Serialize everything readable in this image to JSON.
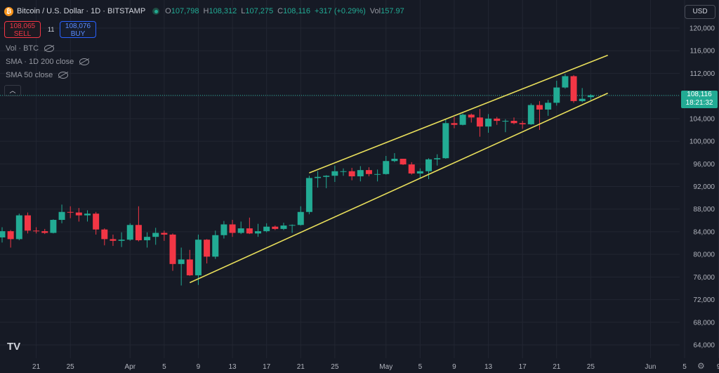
{
  "header": {
    "coin_symbol": "₿",
    "symbol": "Bitcoin / U.S. Dollar · 1D · BITSTAMP",
    "o_label": "O",
    "o": "107,798",
    "h_label": "H",
    "h": "108,312",
    "l_label": "L",
    "l": "107,275",
    "c_label": "C",
    "c": "108,116",
    "change": "+317 (+0.29%)",
    "vol_label": "Vol",
    "vol": "157.97"
  },
  "trade": {
    "sell_price": "108,065",
    "sell_label": "SELL",
    "spread": "11",
    "buy_price": "108,076",
    "buy_label": "BUY"
  },
  "indicators": [
    "Vol · BTC",
    "SMA · 1D 200 close",
    "SMA 50 close"
  ],
  "collapse_icon": "chevron-up-icon",
  "currency": "USD",
  "last_price": {
    "value": "108,116",
    "countdown": "18:21:32"
  },
  "colors": {
    "up": "#22ab94",
    "down": "#f23645",
    "channel": "#e8de5b",
    "background": "#161a25",
    "grid": "#222632"
  },
  "chart_data": {
    "type": "candlestick",
    "y_ticks": [
      "64,000",
      "68,000",
      "72,000",
      "76,000",
      "80,000",
      "84,000",
      "88,000",
      "92,000",
      "96,000",
      "100,000",
      "104,000",
      "108,000",
      "112,000",
      "116,000",
      "120,000"
    ],
    "x_ticks": [
      "21",
      "25",
      "Apr",
      "5",
      "9",
      "13",
      "17",
      "21",
      "25",
      "May",
      "5",
      "9",
      "13",
      "17",
      "21",
      "25",
      "Jun",
      "5",
      "9"
    ],
    "ylim": [
      62000,
      121000
    ],
    "grid": true,
    "start_date": "2025-03-17",
    "candles": [
      {
        "date": "2025-03-17",
        "o": 83000,
        "h": 84800,
        "l": 82100,
        "c": 84100
      },
      {
        "date": "2025-03-18",
        "o": 84100,
        "h": 84300,
        "l": 81200,
        "c": 82700
      },
      {
        "date": "2025-03-19",
        "o": 82700,
        "h": 87200,
        "l": 82500,
        "c": 86900
      },
      {
        "date": "2025-03-20",
        "o": 86900,
        "h": 87400,
        "l": 83700,
        "c": 84200
      },
      {
        "date": "2025-03-21",
        "o": 84200,
        "h": 84800,
        "l": 83700,
        "c": 84100
      },
      {
        "date": "2025-03-22",
        "o": 84100,
        "h": 84500,
        "l": 83600,
        "c": 83800
      },
      {
        "date": "2025-03-23",
        "o": 83800,
        "h": 86200,
        "l": 83700,
        "c": 86100
      },
      {
        "date": "2025-03-24",
        "o": 86100,
        "h": 88800,
        "l": 85500,
        "c": 87500
      },
      {
        "date": "2025-03-25",
        "o": 87500,
        "h": 88500,
        "l": 86400,
        "c": 87400
      },
      {
        "date": "2025-03-26",
        "o": 87400,
        "h": 88200,
        "l": 85800,
        "c": 86900
      },
      {
        "date": "2025-03-27",
        "o": 86900,
        "h": 87800,
        "l": 85800,
        "c": 87200
      },
      {
        "date": "2025-03-28",
        "o": 87200,
        "h": 87500,
        "l": 83500,
        "c": 84400
      },
      {
        "date": "2025-03-29",
        "o": 84400,
        "h": 84600,
        "l": 81600,
        "c": 82700
      },
      {
        "date": "2025-03-30",
        "o": 82700,
        "h": 83500,
        "l": 81500,
        "c": 82400
      },
      {
        "date": "2025-03-31",
        "o": 82400,
        "h": 83900,
        "l": 81300,
        "c": 82600
      },
      {
        "date": "2025-04-01",
        "o": 82600,
        "h": 85500,
        "l": 82400,
        "c": 85200
      },
      {
        "date": "2025-04-02",
        "o": 85200,
        "h": 88500,
        "l": 82300,
        "c": 82500
      },
      {
        "date": "2025-04-03",
        "o": 82500,
        "h": 83900,
        "l": 81200,
        "c": 83100
      },
      {
        "date": "2025-04-04",
        "o": 83100,
        "h": 84700,
        "l": 81700,
        "c": 83800
      },
      {
        "date": "2025-04-05",
        "o": 83800,
        "h": 84200,
        "l": 82400,
        "c": 83500
      },
      {
        "date": "2025-04-06",
        "o": 83500,
        "h": 83700,
        "l": 77100,
        "c": 78300
      },
      {
        "date": "2025-04-07",
        "o": 78300,
        "h": 81200,
        "l": 74500,
        "c": 79100
      },
      {
        "date": "2025-04-08",
        "o": 79100,
        "h": 80800,
        "l": 76200,
        "c": 76300
      },
      {
        "date": "2025-04-09",
        "o": 76300,
        "h": 83500,
        "l": 74600,
        "c": 82600
      },
      {
        "date": "2025-04-10",
        "o": 82600,
        "h": 82700,
        "l": 78400,
        "c": 79600
      },
      {
        "date": "2025-04-11",
        "o": 79600,
        "h": 84200,
        "l": 79200,
        "c": 83400
      },
      {
        "date": "2025-04-12",
        "o": 83400,
        "h": 85900,
        "l": 82800,
        "c": 85300
      },
      {
        "date": "2025-04-13",
        "o": 85300,
        "h": 86100,
        "l": 83100,
        "c": 83800
      },
      {
        "date": "2025-04-14",
        "o": 83800,
        "h": 85800,
        "l": 83600,
        "c": 84600
      },
      {
        "date": "2025-04-15",
        "o": 84600,
        "h": 86500,
        "l": 83600,
        "c": 83700
      },
      {
        "date": "2025-04-16",
        "o": 83700,
        "h": 85400,
        "l": 83100,
        "c": 84100
      },
      {
        "date": "2025-04-17",
        "o": 84100,
        "h": 85500,
        "l": 83900,
        "c": 84900
      },
      {
        "date": "2025-04-18",
        "o": 84900,
        "h": 85100,
        "l": 84300,
        "c": 84500
      },
      {
        "date": "2025-04-19",
        "o": 84500,
        "h": 85600,
        "l": 84300,
        "c": 85100
      },
      {
        "date": "2025-04-20",
        "o": 85100,
        "h": 85300,
        "l": 83800,
        "c": 85200
      },
      {
        "date": "2025-04-21",
        "o": 85200,
        "h": 88500,
        "l": 85100,
        "c": 87500
      },
      {
        "date": "2025-04-22",
        "o": 87500,
        "h": 93900,
        "l": 87100,
        "c": 93500
      },
      {
        "date": "2025-04-23",
        "o": 93500,
        "h": 94700,
        "l": 91800,
        "c": 93700
      },
      {
        "date": "2025-04-24",
        "o": 93700,
        "h": 94000,
        "l": 91700,
        "c": 93900
      },
      {
        "date": "2025-04-25",
        "o": 93900,
        "h": 95700,
        "l": 92800,
        "c": 94700
      },
      {
        "date": "2025-04-26",
        "o": 94700,
        "h": 95200,
        "l": 93900,
        "c": 94700
      },
      {
        "date": "2025-04-27",
        "o": 94700,
        "h": 95300,
        "l": 93100,
        "c": 93800
      },
      {
        "date": "2025-04-28",
        "o": 93800,
        "h": 95600,
        "l": 92900,
        "c": 94900
      },
      {
        "date": "2025-04-29",
        "o": 94900,
        "h": 95400,
        "l": 93800,
        "c": 94200
      },
      {
        "date": "2025-04-30",
        "o": 94200,
        "h": 95000,
        "l": 92900,
        "c": 94200
      },
      {
        "date": "2025-05-01",
        "o": 94200,
        "h": 97400,
        "l": 94100,
        "c": 96500
      },
      {
        "date": "2025-05-02",
        "o": 96500,
        "h": 97900,
        "l": 96300,
        "c": 96900
      },
      {
        "date": "2025-05-03",
        "o": 96900,
        "h": 96900,
        "l": 95800,
        "c": 95900
      },
      {
        "date": "2025-05-04",
        "o": 95900,
        "h": 96300,
        "l": 94100,
        "c": 94300
      },
      {
        "date": "2025-05-05",
        "o": 94300,
        "h": 95200,
        "l": 93500,
        "c": 94700
      },
      {
        "date": "2025-05-06",
        "o": 94700,
        "h": 97000,
        "l": 93300,
        "c": 96800
      },
      {
        "date": "2025-05-07",
        "o": 96800,
        "h": 97700,
        "l": 95700,
        "c": 97000
      },
      {
        "date": "2025-05-08",
        "o": 97000,
        "h": 103900,
        "l": 96900,
        "c": 103200
      },
      {
        "date": "2025-05-09",
        "o": 103200,
        "h": 104300,
        "l": 102300,
        "c": 102900
      },
      {
        "date": "2025-05-10",
        "o": 102900,
        "h": 104900,
        "l": 102800,
        "c": 104700
      },
      {
        "date": "2025-05-11",
        "o": 104700,
        "h": 104900,
        "l": 103300,
        "c": 104200
      },
      {
        "date": "2025-05-12",
        "o": 104200,
        "h": 105700,
        "l": 100800,
        "c": 102600
      },
      {
        "date": "2025-05-13",
        "o": 102600,
        "h": 104800,
        "l": 101500,
        "c": 104000
      },
      {
        "date": "2025-05-14",
        "o": 104000,
        "h": 104300,
        "l": 102900,
        "c": 103600
      },
      {
        "date": "2025-05-15",
        "o": 103600,
        "h": 103900,
        "l": 101600,
        "c": 103600
      },
      {
        "date": "2025-05-16",
        "o": 103600,
        "h": 104200,
        "l": 103000,
        "c": 103200
      },
      {
        "date": "2025-05-17",
        "o": 103200,
        "h": 103600,
        "l": 102200,
        "c": 103000
      },
      {
        "date": "2025-05-18",
        "o": 103000,
        "h": 106700,
        "l": 102900,
        "c": 106400
      },
      {
        "date": "2025-05-19",
        "o": 106400,
        "h": 107100,
        "l": 102000,
        "c": 105600
      },
      {
        "date": "2025-05-20",
        "o": 105600,
        "h": 107300,
        "l": 104500,
        "c": 106800
      },
      {
        "date": "2025-05-21",
        "o": 106800,
        "h": 110700,
        "l": 106300,
        "c": 109500
      },
      {
        "date": "2025-05-22",
        "o": 109500,
        "h": 111900,
        "l": 109300,
        "c": 111500
      },
      {
        "date": "2025-05-23",
        "o": 111500,
        "h": 111700,
        "l": 106800,
        "c": 107100
      },
      {
        "date": "2025-05-24",
        "o": 107100,
        "h": 109400,
        "l": 106900,
        "c": 107500
      },
      {
        "date": "2025-05-25",
        "o": 107798,
        "h": 108312,
        "l": 107275,
        "c": 108116
      }
    ],
    "channel": {
      "upper": [
        {
          "date": "2025-04-22",
          "price": 94400
        },
        {
          "date": "2025-05-27",
          "price": 115200
        }
      ],
      "lower": [
        {
          "date": "2025-04-08",
          "price": 75000
        },
        {
          "date": "2025-05-27",
          "price": 108500
        }
      ]
    },
    "last_price_line": 108116
  }
}
